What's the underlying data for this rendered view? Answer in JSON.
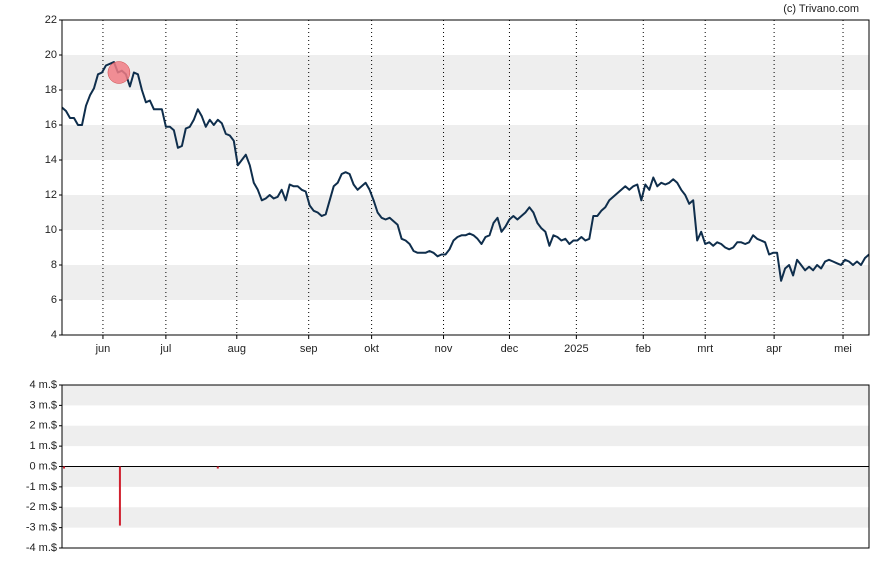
{
  "chart_data": [
    {
      "type": "line",
      "credit": "(c) Trivano.com",
      "xlim": [
        0,
        202
      ],
      "xticks": [
        {
          "value": 10.25,
          "label": "jun"
        },
        {
          "value": 26,
          "label": "jul"
        },
        {
          "value": 43.75,
          "label": "aug"
        },
        {
          "value": 61.75,
          "label": "sep"
        },
        {
          "value": 77.5,
          "label": "okt"
        },
        {
          "value": 95.5,
          "label": "nov"
        },
        {
          "value": 112,
          "label": "dec"
        },
        {
          "value": 128.75,
          "label": "2025"
        },
        {
          "value": 145.5,
          "label": "feb"
        },
        {
          "value": 161,
          "label": "mrt"
        },
        {
          "value": 178.25,
          "label": "apr"
        },
        {
          "value": 195.5,
          "label": "mei"
        }
      ],
      "ylim": [
        4,
        22
      ],
      "yticks": [
        4,
        6,
        8,
        10,
        12,
        14,
        16,
        18,
        20,
        22
      ],
      "grid": true,
      "marker": {
        "x": 14.25,
        "value": 19.0,
        "color": "#f07b84"
      },
      "series": [
        {
          "color": "#0f2e4c",
          "values": [
            17.0,
            16.8,
            16.4,
            16.4,
            16.0,
            16.0,
            17.1,
            17.7,
            18.1,
            18.9,
            19.0,
            19.4,
            19.5,
            19.6,
            19.0,
            19.1,
            18.9,
            18.2,
            19.0,
            18.9,
            18.0,
            17.3,
            17.4,
            16.9,
            16.9,
            16.9,
            15.9,
            15.9,
            15.7,
            14.7,
            14.8,
            15.8,
            15.9,
            16.3,
            16.9,
            16.5,
            15.9,
            16.3,
            16.0,
            16.3,
            16.1,
            15.5,
            15.4,
            15.1,
            13.7,
            14.0,
            14.3,
            13.7,
            12.7,
            12.3,
            11.7,
            11.8,
            12.0,
            11.8,
            11.9,
            12.3,
            11.7,
            12.6,
            12.5,
            12.5,
            12.3,
            12.2,
            11.4,
            11.1,
            11.0,
            10.8,
            10.9,
            11.7,
            12.5,
            12.7,
            13.2,
            13.3,
            13.2,
            12.6,
            12.3,
            12.5,
            12.7,
            12.3,
            11.7,
            11.0,
            10.7,
            10.6,
            10.7,
            10.5,
            10.3,
            9.5,
            9.4,
            9.2,
            8.8,
            8.7,
            8.7,
            8.7,
            8.8,
            8.7,
            8.5,
            8.6,
            8.6,
            8.9,
            9.4,
            9.6,
            9.7,
            9.7,
            9.8,
            9.7,
            9.5,
            9.2,
            9.6,
            9.7,
            10.4,
            10.7,
            9.9,
            10.2,
            10.6,
            10.8,
            10.6,
            10.8,
            11.0,
            11.3,
            11.0,
            10.4,
            10.1,
            9.9,
            9.1,
            9.7,
            9.6,
            9.4,
            9.5,
            9.2,
            9.4,
            9.4,
            9.6,
            9.4,
            9.5,
            10.8,
            10.8,
            11.1,
            11.3,
            11.7,
            11.9,
            12.1,
            12.3,
            12.5,
            12.3,
            12.5,
            12.6,
            11.7,
            12.6,
            12.3,
            13.0,
            12.5,
            12.7,
            12.6,
            12.7,
            12.9,
            12.7,
            12.3,
            12.0,
            11.5,
            11.7,
            9.4,
            9.9,
            9.2,
            9.3,
            9.1,
            9.3,
            9.2,
            9.0,
            8.9,
            9.0,
            9.3,
            9.3,
            9.2,
            9.3,
            9.7,
            9.5,
            9.4,
            9.3,
            8.6,
            8.7,
            8.7,
            7.1,
            7.8,
            8.0,
            7.4,
            8.3,
            8.0,
            7.7,
            7.9,
            7.7,
            8.0,
            7.8,
            8.2,
            8.3,
            8.2,
            8.1,
            8.0,
            8.3,
            8.2,
            8.0,
            8.2,
            8.0,
            8.4,
            8.6
          ]
        }
      ]
    },
    {
      "type": "bar",
      "xlim": [
        0,
        202
      ],
      "ylim": [
        -4,
        4
      ],
      "yticks": [
        {
          "value": 4,
          "label": "4 m.$"
        },
        {
          "value": 3,
          "label": "3 m.$"
        },
        {
          "value": 2,
          "label": "2 m.$"
        },
        {
          "value": 1,
          "label": "1 m.$"
        },
        {
          "value": 0,
          "label": "0 m.$"
        },
        {
          "value": -1,
          "label": "-1 m.$"
        },
        {
          "value": -2,
          "label": "-2 m.$"
        },
        {
          "value": -3,
          "label": "-3 m.$"
        },
        {
          "value": -4,
          "label": "-4 m.$"
        }
      ],
      "grid": true,
      "x": [
        0.5,
        14.5,
        39
      ],
      "values": [
        -0.1,
        -2.9,
        -0.1
      ],
      "color": "#d0202e"
    }
  ]
}
